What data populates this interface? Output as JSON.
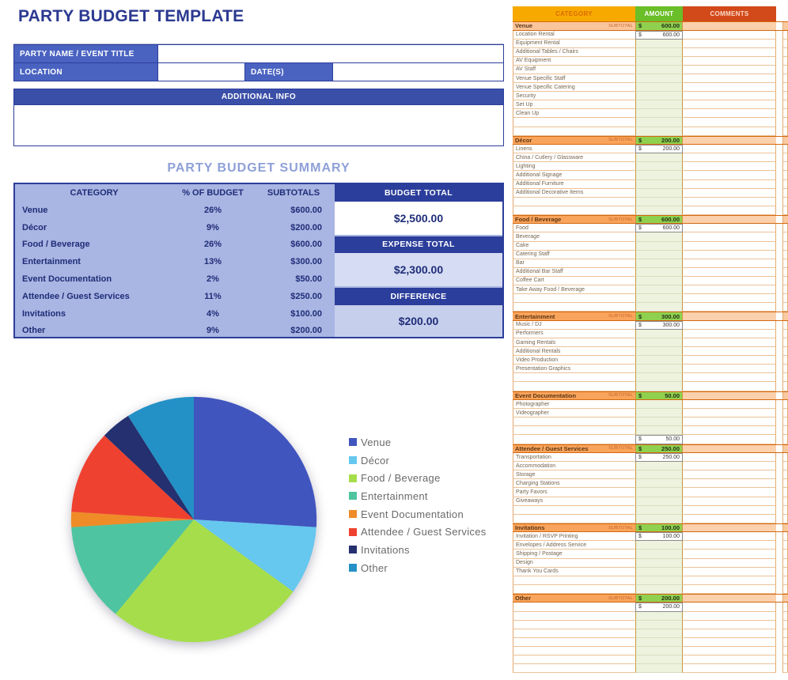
{
  "page_title": "PARTY BUDGET TEMPLATE",
  "form": {
    "party_name_label": "PARTY NAME / EVENT TITLE",
    "party_name_value": "",
    "location_label": "LOCATION",
    "location_value": "",
    "dates_label": "DATE(S)",
    "dates_value": "",
    "additional_info_label": "ADDITIONAL INFO",
    "additional_info_value": ""
  },
  "summary": {
    "title": "PARTY BUDGET SUMMARY",
    "columns": [
      "CATEGORY",
      "% OF BUDGET",
      "SUBTOTALS"
    ],
    "rows": [
      {
        "category": "Venue",
        "percent": "26%",
        "subtotal": "$600.00"
      },
      {
        "category": "Décor",
        "percent": "9%",
        "subtotal": "$200.00"
      },
      {
        "category": "Food / Beverage",
        "percent": "26%",
        "subtotal": "$600.00"
      },
      {
        "category": "Entertainment",
        "percent": "13%",
        "subtotal": "$300.00"
      },
      {
        "category": "Event Documentation",
        "percent": "2%",
        "subtotal": "$50.00"
      },
      {
        "category": "Attendee / Guest Services",
        "percent": "11%",
        "subtotal": "$250.00"
      },
      {
        "category": "Invitations",
        "percent": "4%",
        "subtotal": "$100.00"
      },
      {
        "category": "Other",
        "percent": "9%",
        "subtotal": "$200.00"
      }
    ],
    "totals": [
      {
        "label": "BUDGET TOTAL",
        "value": "$2,500.00"
      },
      {
        "label": "EXPENSE TOTAL",
        "value": "$2,300.00"
      },
      {
        "label": "DIFFERENCE",
        "value": "$200.00"
      }
    ]
  },
  "chart_data": {
    "type": "pie",
    "title": "",
    "categories": [
      "Venue",
      "Décor",
      "Food / Beverage",
      "Entertainment",
      "Event Documentation",
      "Attendee / Guest Services",
      "Invitations",
      "Other"
    ],
    "values": [
      26,
      9,
      26,
      13,
      2,
      11,
      4,
      9
    ],
    "colors": [
      "#4155BE",
      "#66C7EF",
      "#A6DE4B",
      "#4EC4A0",
      "#EF8C28",
      "#EF4130",
      "#24306F",
      "#2491C6"
    ],
    "legend_position": "right",
    "start_angle_deg": -90,
    "direction": "clockwise"
  },
  "sheet": {
    "columns": [
      "CATEGORY",
      "AMOUNT",
      "COMMENTS"
    ],
    "subtotal_label": "SUBTOTAL",
    "currency": "$",
    "sections": [
      {
        "name": "Venue",
        "subtotal": "600.00",
        "rows": [
          {
            "label": "Location Rental",
            "amount": "600.00"
          },
          {
            "label": "Equipment Rental",
            "amount": ""
          },
          {
            "label": "Additional Tables / Chairs",
            "amount": ""
          },
          {
            "label": "AV Equipment",
            "amount": ""
          },
          {
            "label": "AV Staff",
            "amount": ""
          },
          {
            "label": "Venue Specific Staff",
            "amount": ""
          },
          {
            "label": "Venue Specific Catering",
            "amount": ""
          },
          {
            "label": "Security",
            "amount": ""
          },
          {
            "label": "Set Up",
            "amount": ""
          },
          {
            "label": "Clean Up",
            "amount": ""
          },
          {
            "label": "",
            "amount": ""
          },
          {
            "label": "",
            "amount": ""
          }
        ]
      },
      {
        "name": "Décor",
        "subtotal": "200.00",
        "rows": [
          {
            "label": "Linens",
            "amount": "200.00"
          },
          {
            "label": "China / Cutlery / Glassware",
            "amount": ""
          },
          {
            "label": "Lighting",
            "amount": ""
          },
          {
            "label": "Additional Signage",
            "amount": ""
          },
          {
            "label": "Additional Furniture",
            "amount": ""
          },
          {
            "label": "Additional Decorative Items",
            "amount": ""
          },
          {
            "label": "",
            "amount": ""
          },
          {
            "label": "",
            "amount": ""
          }
        ]
      },
      {
        "name": "Food / Beverage",
        "subtotal": "600.00",
        "rows": [
          {
            "label": "Food",
            "amount": "600.00"
          },
          {
            "label": "Beverage",
            "amount": ""
          },
          {
            "label": "Cake",
            "amount": ""
          },
          {
            "label": "Catering Staff",
            "amount": ""
          },
          {
            "label": "Bar",
            "amount": ""
          },
          {
            "label": "Additional Bar Staff",
            "amount": ""
          },
          {
            "label": "Coffee Cart",
            "amount": ""
          },
          {
            "label": "Take Away Food / Beverage",
            "amount": ""
          },
          {
            "label": "",
            "amount": ""
          },
          {
            "label": "",
            "amount": ""
          }
        ]
      },
      {
        "name": "Entertainment",
        "subtotal": "300.00",
        "rows": [
          {
            "label": "Music / DJ",
            "amount": "300.00"
          },
          {
            "label": "Performers",
            "amount": ""
          },
          {
            "label": "Gaming Rentals",
            "amount": ""
          },
          {
            "label": "Additional Rentals",
            "amount": ""
          },
          {
            "label": "Video Production",
            "amount": ""
          },
          {
            "label": "Presentation Graphics",
            "amount": ""
          },
          {
            "label": "",
            "amount": ""
          },
          {
            "label": "",
            "amount": ""
          }
        ]
      },
      {
        "name": "Event Documentation",
        "subtotal": "50.00",
        "rows": [
          {
            "label": "Photographer",
            "amount": ""
          },
          {
            "label": "Videographer",
            "amount": ""
          },
          {
            "label": "",
            "amount": ""
          },
          {
            "label": "",
            "amount": ""
          },
          {
            "label": "",
            "amount": "50.00"
          }
        ]
      },
      {
        "name": "Attendee / Guest Services",
        "subtotal": "250.00",
        "rows": [
          {
            "label": "Transportation",
            "amount": "250.00"
          },
          {
            "label": "Accommodation",
            "amount": ""
          },
          {
            "label": "Storage",
            "amount": ""
          },
          {
            "label": "Charging Stations",
            "amount": ""
          },
          {
            "label": "Party Favors",
            "amount": ""
          },
          {
            "label": "Giveaways",
            "amount": ""
          },
          {
            "label": "",
            "amount": ""
          },
          {
            "label": "",
            "amount": ""
          }
        ]
      },
      {
        "name": "Invitations",
        "subtotal": "100.00",
        "rows": [
          {
            "label": "Invitation / RSVP Printing",
            "amount": "100.00"
          },
          {
            "label": "Envelopes / Address Service",
            "amount": ""
          },
          {
            "label": "Shipping / Postage",
            "amount": ""
          },
          {
            "label": "Design",
            "amount": ""
          },
          {
            "label": "Thank You Cards",
            "amount": ""
          },
          {
            "label": "",
            "amount": ""
          },
          {
            "label": "",
            "amount": ""
          }
        ]
      },
      {
        "name": "Other",
        "subtotal": "200.00",
        "rows": [
          {
            "label": "",
            "amount": "200.00"
          },
          {
            "label": "",
            "amount": ""
          },
          {
            "label": "",
            "amount": ""
          },
          {
            "label": "",
            "amount": ""
          },
          {
            "label": "",
            "amount": ""
          },
          {
            "label": "",
            "amount": ""
          },
          {
            "label": "",
            "amount": ""
          },
          {
            "label": "",
            "amount": ""
          }
        ]
      }
    ]
  },
  "colors": {
    "title_navy": "#2B3990",
    "form_label_blue": "#4A63C1",
    "header_bar_blue": "#3A4FA8",
    "panel_navy": "#2C3E9B",
    "summary_bg": "#A9B5E2",
    "sheet_category_header": "#F7A900",
    "sheet_amount_header": "#6ABE28",
    "sheet_comments_header": "#D24A1A",
    "sheet_section_orange": "#F9A45C",
    "sheet_subtotal_green": "#8FD14F"
  }
}
